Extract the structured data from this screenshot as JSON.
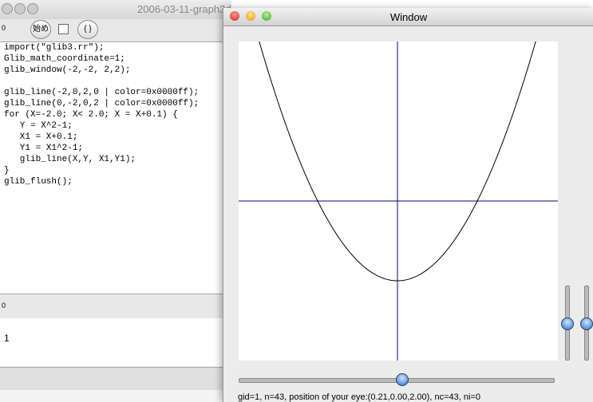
{
  "background_window": {
    "title": "2006-03-11-graph3d",
    "toolbar": {
      "counter": "0",
      "start_button": "始め",
      "braces_button": "{ }"
    },
    "code_setup": [
      "import(\"glib3.rr\");",
      "Glib_math_coordinate=1;",
      "glib_window(-2,-2, 2,2);"
    ],
    "code_body": [
      "glib_line(-2,0,2,0 | color=0x0000ff);",
      "glib_line(0,-2,0,2 | color=0x0000ff);",
      "for (X=-2.0; X< 2.0; X = X+0.1) {",
      "   Y = X^2-1;",
      "   X1 = X+0.1;",
      "   Y1 = X1^2-1;",
      "   glib_line(X,Y, X1,Y1);",
      "}",
      "glib_flush();"
    ],
    "output_header": "0",
    "output": "1"
  },
  "graph_window": {
    "title": "Window",
    "status": "gid=1, n=43, position of your eye:(0.21,0.00,2.00), nc=43, ni=0"
  }
}
